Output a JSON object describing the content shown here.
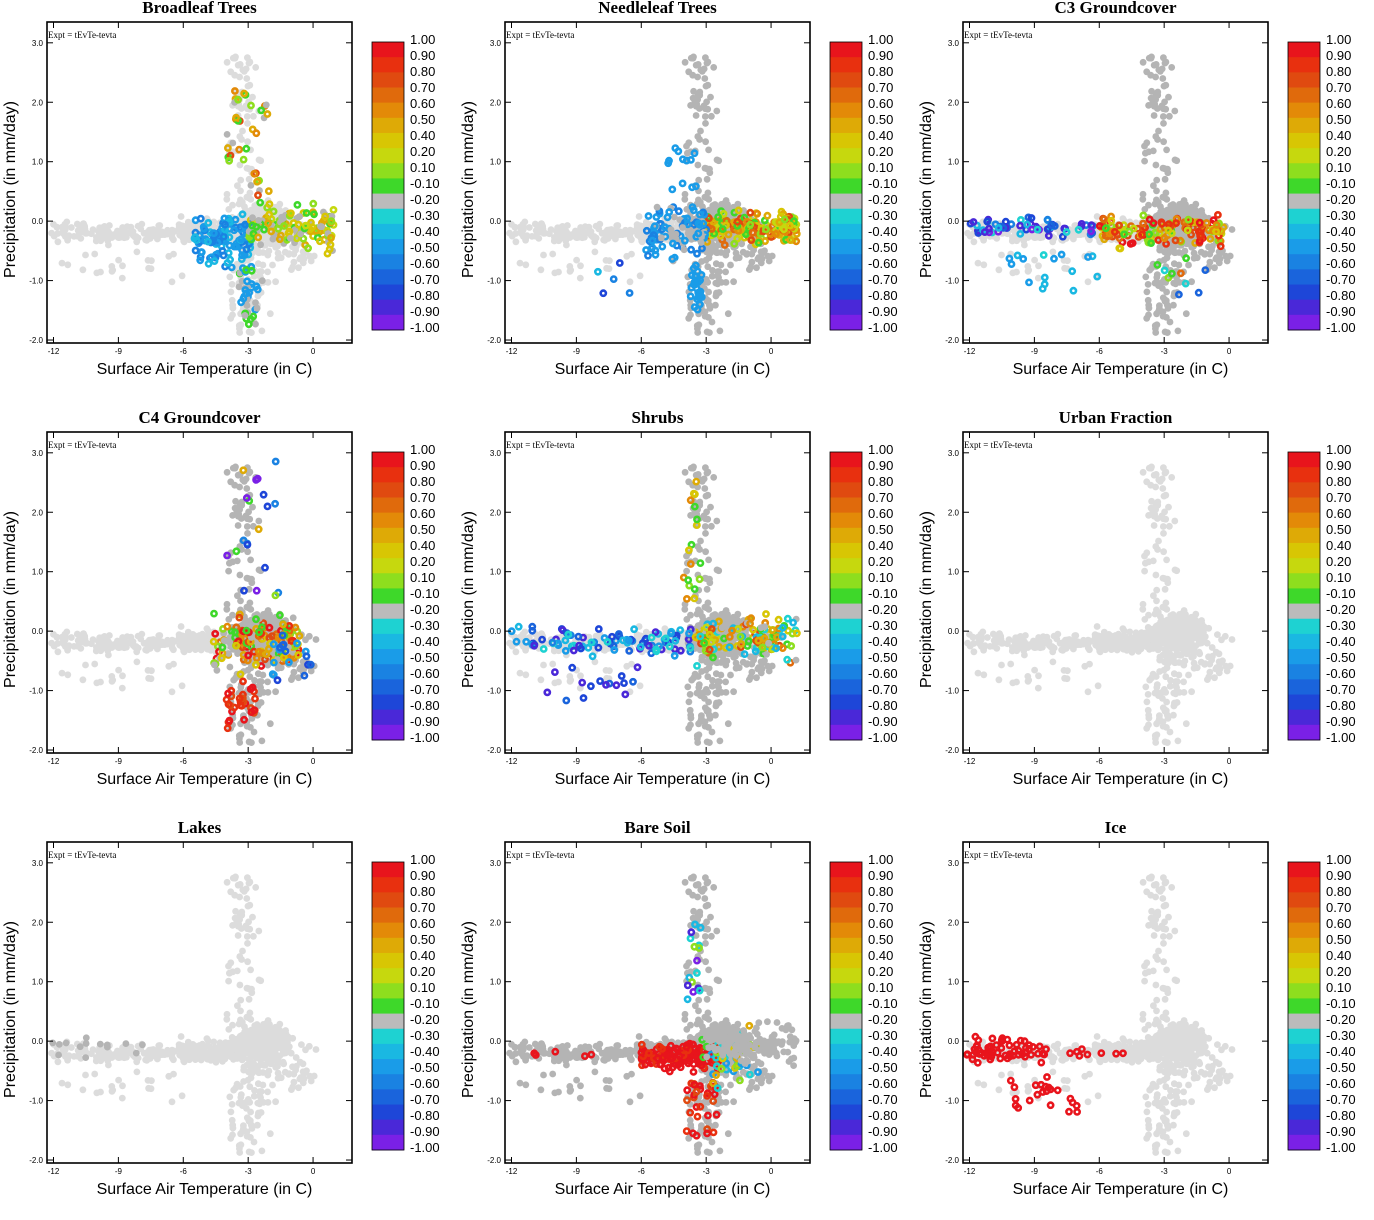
{
  "chart_data": {
    "type": "scatter",
    "experiment_label": "Expt = tEvTe-tevta",
    "xlabel": "Surface Air Temperature (in C)",
    "ylabel": "Precipitation (in mm/day)",
    "xlim": [
      -12.3,
      1.8
    ],
    "ylim": [
      -2.05,
      3.35
    ],
    "x_ticks": [
      -12,
      -9,
      -6,
      -3,
      0
    ],
    "x_tick_labels": [
      "-12",
      "-9",
      "-6",
      "-3",
      "0"
    ],
    "y_ticks": [
      -2.0,
      -1.0,
      0.0,
      1.0,
      2.0,
      3.0
    ],
    "y_tick_labels": [
      "-2.0",
      "-1.0",
      "0.0",
      "1.0",
      "2.0",
      "3.0"
    ],
    "colorbar": {
      "labels": [
        "1.00",
        "0.90",
        "0.80",
        "0.70",
        "0.60",
        "0.50",
        "0.40",
        "0.20",
        "0.10",
        "-0.10",
        "-0.20",
        "-0.30",
        "-0.40",
        "-0.50",
        "-0.60",
        "-0.70",
        "-0.80",
        "-0.90",
        "-1.00"
      ],
      "colors": [
        "#e8141c",
        "#e8300f",
        "#e04a10",
        "#e06a0c",
        "#e38a08",
        "#deaa06",
        "#d8c604",
        "#c6d80e",
        "#8ede1e",
        "#3ed82a",
        "#bbbbbb",
        "#1ed2d2",
        "#1ab8e2",
        "#1a9ce8",
        "#1a82e2",
        "#1a64dc",
        "#1e46d8",
        "#4a28d8",
        "#7a20e6"
      ]
    },
    "panels": [
      {
        "title": "Broadleaf Trees",
        "pattern": "broadleaf"
      },
      {
        "title": "Needleleaf Trees",
        "pattern": "needleleaf"
      },
      {
        "title": "C3 Groundcover",
        "pattern": "c3"
      },
      {
        "title": "C4 Groundcover",
        "pattern": "c4"
      },
      {
        "title": "Shrubs",
        "pattern": "shrubs"
      },
      {
        "title": "Urban Fraction",
        "pattern": "urban"
      },
      {
        "title": "Lakes",
        "pattern": "lakes"
      },
      {
        "title": "Bare Soil",
        "pattern": "baresoil"
      },
      {
        "title": "Ice",
        "pattern": "ice"
      }
    ]
  }
}
